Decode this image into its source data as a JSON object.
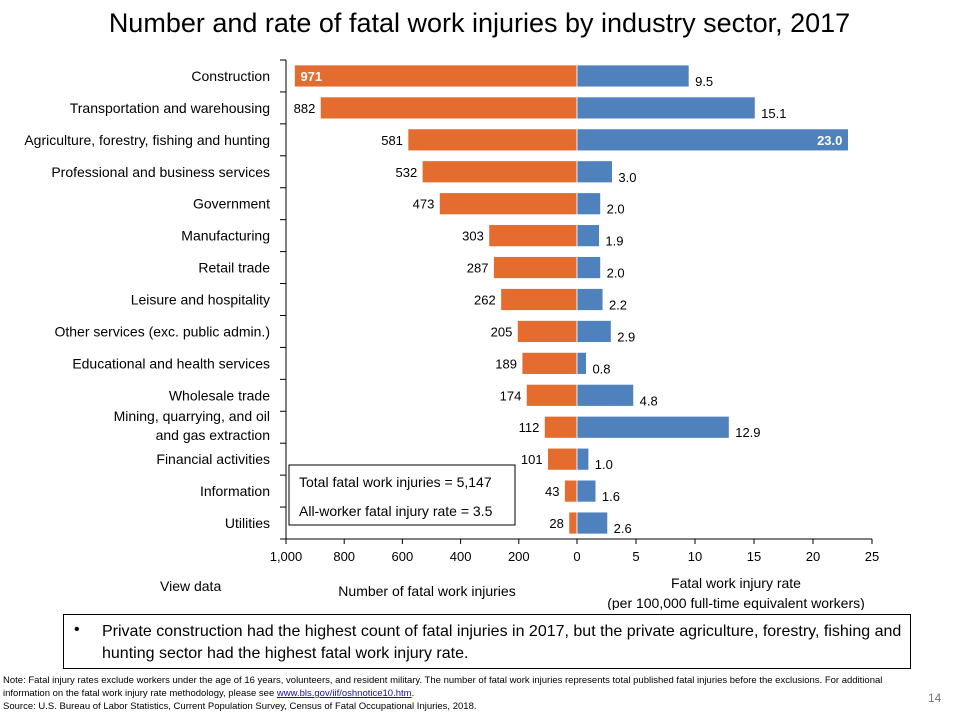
{
  "title": "Number and rate of fatal work injuries by industry sector, 2017",
  "chart_data": {
    "type": "bar",
    "orientation": "horizontal-butterfly",
    "categories": [
      "Construction",
      "Transportation and warehousing",
      "Agriculture, forestry, fishing and hunting",
      "Professional and business services",
      "Government",
      "Manufacturing",
      "Retail trade",
      "Leisure and hospitality",
      "Other services (exc. public admin.)",
      "Educational and health services",
      "Wholesale trade",
      "Mining, quarrying, and oil|and gas extraction",
      "Financial activities",
      "Information",
      "Utilities"
    ],
    "series": [
      {
        "name": "Number of fatal work injuries",
        "color": "#E46C2E",
        "values": [
          971,
          882,
          581,
          532,
          473,
          303,
          287,
          262,
          205,
          189,
          174,
          112,
          101,
          43,
          28
        ],
        "labels": [
          "971",
          "882",
          "581",
          "532",
          "473",
          "303",
          "287",
          "262",
          "205",
          "189",
          "174",
          "112",
          "101",
          "43",
          "28"
        ]
      },
      {
        "name": "Fatal work injury rate",
        "color": "#4F81BD",
        "values": [
          9.5,
          15.1,
          23.0,
          3.0,
          2.0,
          1.9,
          2.0,
          2.2,
          2.9,
          0.8,
          4.8,
          12.9,
          1.0,
          1.6,
          2.6
        ],
        "labels": [
          "9.5",
          "15.1",
          "23.0",
          "3.0",
          "2.0",
          "1.9",
          "2.0",
          "2.2",
          "2.9",
          "0.8",
          "4.8",
          "12.9",
          "1.0",
          "1.6",
          "2.6"
        ]
      }
    ],
    "left_axis": {
      "range": [
        0,
        1000
      ],
      "ticks": [
        1000,
        800,
        600,
        400,
        200,
        0
      ],
      "tick_labels": [
        "1,000",
        "800",
        "600",
        "400",
        "200",
        "0"
      ],
      "label": "Number of fatal work injuries"
    },
    "right_axis": {
      "range": [
        0,
        25
      ],
      "ticks": [
        5,
        10,
        15,
        20,
        25
      ],
      "tick_labels": [
        "5",
        "10",
        "15",
        "20",
        "25"
      ],
      "label_line1": "Fatal work injury rate",
      "label_line2": "(per 100,000 full-time equivalent workers)"
    },
    "annotation": {
      "total": "Total fatal work injuries = 5,147",
      "rate": "All-worker fatal injury rate = 3.5"
    }
  },
  "view_data_link": "View data",
  "bullet": {
    "symbol": "•",
    "text": "Private construction had the highest count of fatal injuries in 2017, but the private agriculture, forestry, fishing and hunting sector had the highest fatal work injury rate."
  },
  "notes": {
    "line1": "Note: Fatal injury rates exclude workers under the age of 16 years, volunteers, and resident military. The number of fatal work injuries represents total published fatal injuries before the exclusions. For additional information on the fatal work injury rate methodology, please see",
    "link": "www.bls.gov/iif/oshnotice10.htm",
    "link_suffix": ".",
    "source": "Source:  U.S. Bureau of Labor Statistics, Current Population Survey, Census of Fatal Occupational Injuries, 2018."
  },
  "page_number": "14"
}
